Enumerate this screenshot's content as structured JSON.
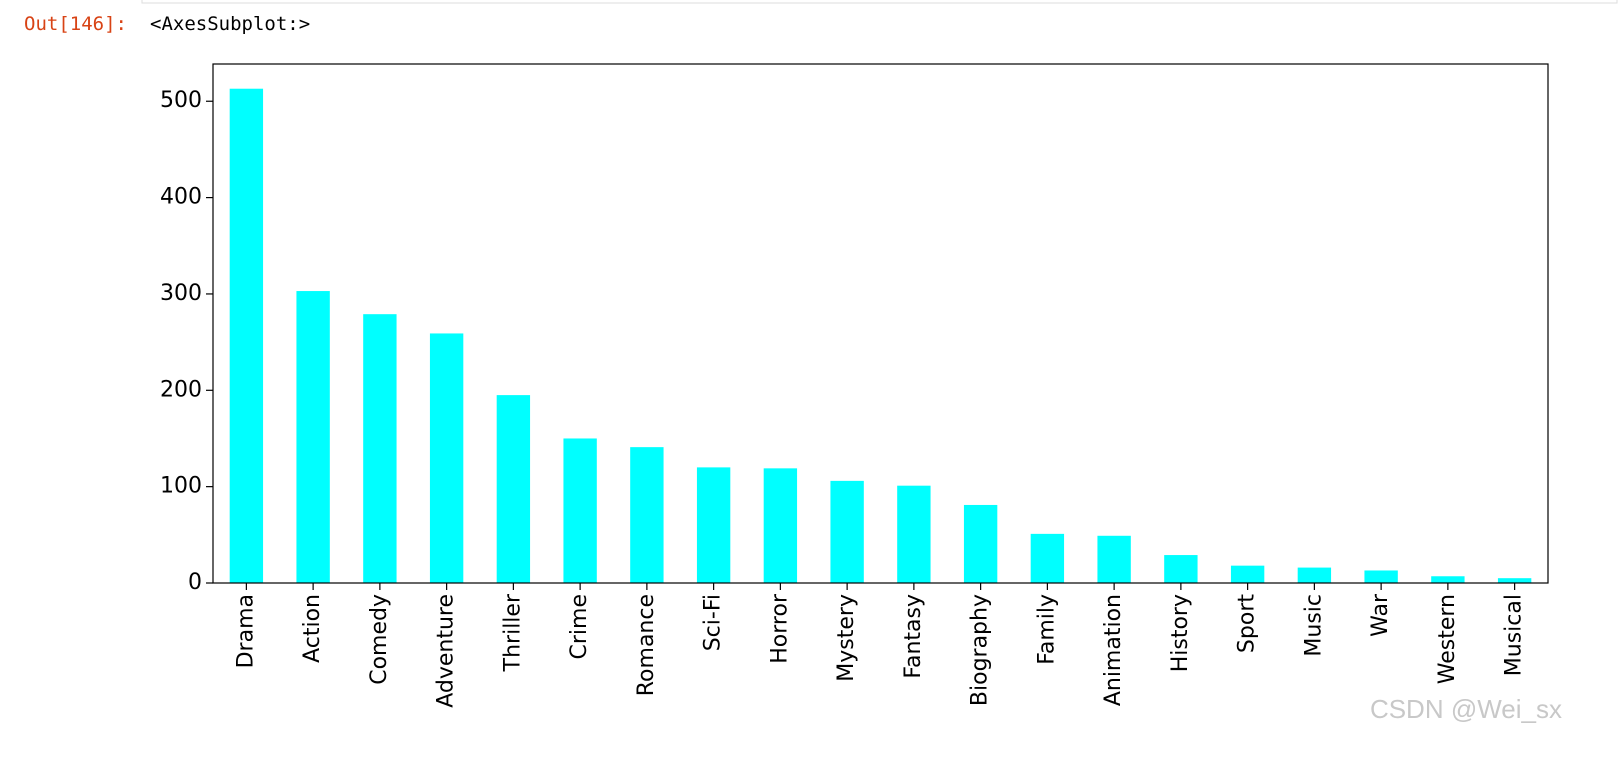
{
  "prompt": "Out[146]:",
  "output_text": "<AxesSubplot:>",
  "watermark": "CSDN @Wei_sx",
  "chart_data": {
    "type": "bar",
    "categories": [
      "Drama",
      "Action",
      "Comedy",
      "Adventure",
      "Thriller",
      "Crime",
      "Romance",
      "Sci-Fi",
      "Horror",
      "Mystery",
      "Fantasy",
      "Biography",
      "Family",
      "Animation",
      "History",
      "Sport",
      "Music",
      "War",
      "Western",
      "Musical"
    ],
    "values": [
      513,
      303,
      279,
      259,
      195,
      150,
      141,
      120,
      119,
      106,
      101,
      81,
      51,
      49,
      29,
      18,
      16,
      13,
      7,
      5
    ],
    "color": "#00ffff",
    "ylim": [
      0,
      538.65
    ],
    "yticks": [
      0,
      100,
      200,
      300,
      400,
      500
    ],
    "grid": false
  }
}
